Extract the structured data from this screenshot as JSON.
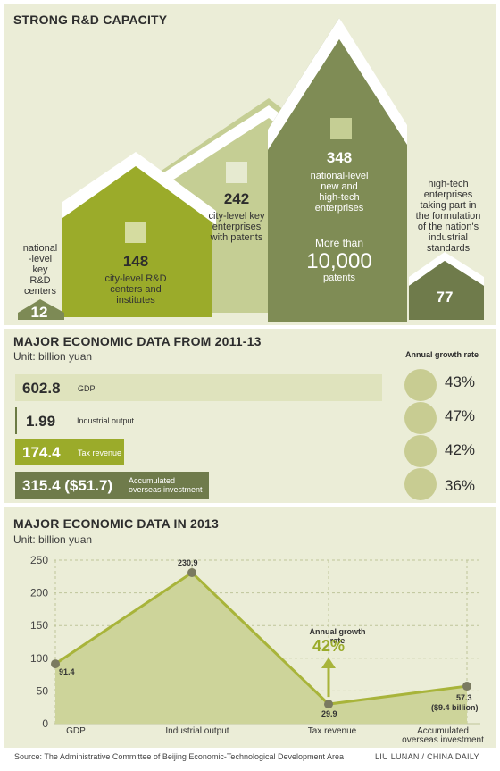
{
  "section1": {
    "title": "STRONG R&D CAPACITY",
    "houses": [
      {
        "value": "12",
        "label": [
          "national",
          "-level",
          "key",
          "R&D",
          "centers"
        ]
      },
      {
        "value": "148",
        "label": [
          "city-level R&D",
          "centers and",
          "institutes"
        ]
      },
      {
        "value": "242",
        "label": [
          "city-level key",
          "enterprises",
          "with patents"
        ]
      },
      {
        "value": "348",
        "label": [
          "national-level",
          "new and",
          "high-tech",
          "enterprises"
        ],
        "extra_prefix": "More than",
        "extra_value": "10,000",
        "extra_label": "patents"
      },
      {
        "value": "77",
        "label": [
          "high-tech",
          "enterprises",
          "taking part in",
          "the formulation",
          "of the nation's",
          "industrial",
          "standards"
        ]
      }
    ]
  },
  "section2": {
    "title": "MAJOR ECONOMIC DATA FROM 2011-13",
    "unit": "Unit: billion yuan",
    "growth_header": "Annual growth rate",
    "bars": [
      {
        "value": 602.8,
        "value_text": "602.8",
        "label": [
          "GDP"
        ],
        "growth": "43%"
      },
      {
        "value": 1.99,
        "value_text": "1.99",
        "label": [
          "Industrial output"
        ],
        "growth": "47%"
      },
      {
        "value": 174.4,
        "value_text": "174.4",
        "label": [
          "Tax revenue"
        ],
        "growth": "42%"
      },
      {
        "value": 315.4,
        "value_text": "315.4 ($51.7)",
        "label": [
          "Accumulated",
          "overseas investment"
        ],
        "growth": "36%"
      }
    ]
  },
  "chart_data": {
    "type": "area",
    "title": "MAJOR ECONOMIC DATA IN 2013",
    "subtitle": "Unit: billion yuan",
    "categories": [
      "GDP",
      "Industrial output",
      "Tax revenue",
      "Accumulated overseas investment"
    ],
    "values": [
      91.4,
      230.9,
      29.9,
      57.3
    ],
    "data_labels": [
      "91.4",
      "230.9",
      "29.9",
      "57.3 ($9.4 billion)"
    ],
    "ylim": [
      0,
      250
    ],
    "yticks": [
      0,
      50,
      100,
      150,
      200,
      250
    ],
    "grid": true,
    "annotation": {
      "label": "Annual growth rate",
      "value": "42%"
    }
  },
  "footer": {
    "source": "Source: The Administrative Committee of Beijing Economic-Technological Development Area",
    "credit": "LIU LUNAN / CHINA DAILY"
  },
  "colors": {
    "panel": "#ebedd7",
    "house1": "#7d8a55",
    "house2": "#9bab2a",
    "house3": "#c5ce94",
    "house4": "#7f8c55",
    "house5": "#6f7b4b",
    "line": "#a8b43a",
    "area": "#cdd49a",
    "accent_text": "#9aab2a"
  }
}
